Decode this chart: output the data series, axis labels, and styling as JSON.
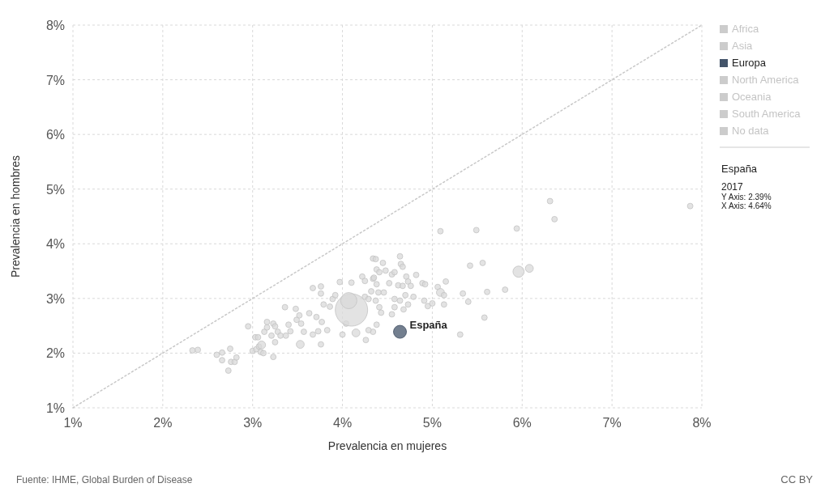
{
  "chart_data": {
    "type": "bubble",
    "xlabel": "Prevalencia en mujeres",
    "ylabel": "Prevalencia en hombres",
    "xlim": [
      1,
      8
    ],
    "ylim": [
      1,
      8
    ],
    "xticks": [
      {
        "value": 1,
        "label": "1%"
      },
      {
        "value": 2,
        "label": "2%"
      },
      {
        "value": 3,
        "label": "3%"
      },
      {
        "value": 4,
        "label": "4%"
      },
      {
        "value": 5,
        "label": "5%"
      },
      {
        "value": 6,
        "label": "6%"
      },
      {
        "value": 7,
        "label": "7%"
      },
      {
        "value": 8,
        "label": "8%"
      }
    ],
    "yticks": [
      {
        "value": 1,
        "label": "1%"
      },
      {
        "value": 2,
        "label": "2%"
      },
      {
        "value": 3,
        "label": "3%"
      },
      {
        "value": 4,
        "label": "4%"
      },
      {
        "value": 5,
        "label": "5%"
      },
      {
        "value": 6,
        "label": "6%"
      },
      {
        "value": 7,
        "label": "7%"
      },
      {
        "value": 8,
        "label": "8%"
      }
    ],
    "grid": true,
    "legend": "right",
    "series": [
      {
        "type": "line",
        "color": "#c8c8c8",
        "line_style": "dotted",
        "marker": "none",
        "x": [
          1,
          8
        ],
        "values": [
          1,
          8
        ]
      },
      {
        "color": "#d9d9d9",
        "x": [
          2.33,
          2.39,
          2.6,
          2.66,
          2.66,
          2.75,
          2.76,
          2.8,
          2.82,
          2.73,
          2.95,
          3.0,
          3.04,
          3.07,
          3.1,
          3.09,
          3.12,
          3.23,
          3.03,
          3.06,
          3.13,
          3.16,
          3.16,
          3.21,
          3.23,
          3.25,
          3.28,
          3.31,
          3.25,
          3.36,
          3.37,
          3.4,
          3.42,
          3.48,
          3.49,
          3.52,
          3.54,
          3.57,
          3.53,
          3.63,
          3.67,
          3.71,
          3.73,
          3.76,
          3.77,
          3.67,
          3.76,
          3.76,
          3.79,
          3.83,
          3.86,
          3.89,
          3.92,
          3.97,
          4.0,
          4.04,
          4.1,
          4.15,
          4.22,
          4.25,
          4.25,
          4.26,
          4.34,
          4.37,
          4.45,
          4.38,
          4.41,
          4.34,
          4.38,
          4.32,
          4.4,
          4.29,
          4.37,
          4.41,
          4.43,
          4.38,
          4.34,
          4.29,
          4.1,
          4.07,
          4.64,
          4.65,
          4.67,
          4.55,
          4.58,
          4.48,
          4.71,
          4.82,
          4.52,
          4.62,
          4.67,
          4.73,
          4.76,
          4.89,
          4.92,
          4.46,
          4.58,
          4.64,
          4.7,
          4.79,
          4.73,
          4.58,
          4.68,
          4.55,
          4.91,
          4.95,
          5.0,
          5.06,
          5.09,
          5.13,
          5.15,
          5.13,
          5.34,
          5.4,
          5.42,
          5.56,
          5.61,
          5.81,
          5.58,
          5.31,
          4.35,
          5.09,
          5.49,
          5.94,
          6.31,
          6.36,
          7.87,
          5.96,
          6.08
        ],
        "values": [
          2.05,
          2.06,
          1.97,
          2.01,
          1.87,
          2.08,
          1.84,
          1.84,
          1.92,
          1.68,
          2.49,
          2.04,
          2.07,
          2.12,
          2.15,
          2.02,
          2.0,
          1.93,
          2.29,
          2.29,
          2.39,
          2.57,
          2.47,
          2.32,
          2.54,
          2.49,
          2.39,
          2.32,
          2.2,
          2.84,
          2.32,
          2.52,
          2.4,
          2.81,
          2.61,
          2.69,
          2.54,
          2.39,
          2.16,
          2.73,
          2.34,
          2.66,
          2.4,
          2.16,
          2.57,
          3.19,
          3.22,
          3.09,
          2.89,
          2.42,
          2.85,
          2.99,
          3.06,
          3.3,
          2.34,
          2.54,
          3.29,
          2.37,
          3.4,
          3.32,
          3.03,
          2.24,
          3.73,
          3.72,
          3.65,
          3.53,
          3.48,
          3.36,
          3.26,
          3.13,
          3.11,
          2.99,
          2.96,
          2.84,
          2.74,
          2.52,
          2.39,
          2.42,
          2.79,
          2.96,
          3.77,
          3.63,
          3.58,
          3.44,
          3.48,
          3.51,
          3.4,
          3.43,
          3.28,
          3.24,
          3.23,
          3.31,
          3.23,
          3.28,
          3.26,
          3.11,
          2.99,
          2.96,
          3.06,
          3.03,
          2.89,
          2.84,
          2.8,
          2.71,
          2.96,
          2.86,
          2.91,
          3.21,
          3.11,
          3.06,
          3.31,
          2.89,
          3.09,
          2.94,
          3.6,
          3.65,
          3.12,
          3.16,
          2.65,
          2.34,
          3.38,
          4.23,
          4.25,
          4.28,
          4.78,
          4.45,
          4.69,
          3.49,
          3.55
        ],
        "sizes": [
          0.03,
          0.03,
          0.03,
          0.03,
          0.03,
          0.03,
          0.03,
          0.03,
          0.03,
          0.03,
          0.03,
          0.03,
          0.03,
          0.03,
          0.06,
          0.03,
          0.03,
          0.03,
          0.03,
          0.03,
          0.03,
          0.03,
          0.03,
          0.03,
          0.03,
          0.03,
          0.03,
          0.03,
          0.03,
          0.03,
          0.03,
          0.03,
          0.03,
          0.03,
          0.03,
          0.03,
          0.03,
          0.03,
          0.06,
          0.03,
          0.03,
          0.03,
          0.03,
          0.03,
          0.03,
          0.03,
          0.03,
          0.03,
          0.03,
          0.03,
          0.03,
          0.03,
          0.03,
          0.03,
          0.03,
          0.03,
          0.03,
          0.06,
          0.03,
          0.03,
          0.03,
          0.03,
          0.03,
          0.03,
          0.03,
          0.03,
          0.03,
          0.03,
          0.03,
          0.03,
          0.03,
          0.03,
          0.03,
          0.03,
          0.03,
          0.03,
          0.03,
          0.03,
          1,
          0.25,
          0.03,
          0.03,
          0.03,
          0.03,
          0.03,
          0.03,
          0.03,
          0.03,
          0.03,
          0.03,
          0.03,
          0.03,
          0.03,
          0.03,
          0.03,
          0.03,
          0.03,
          0.03,
          0.03,
          0.03,
          0.03,
          0.03,
          0.03,
          0.03,
          0.03,
          0.03,
          0.03,
          0.03,
          0.06,
          0.03,
          0.03,
          0.03,
          0.03,
          0.03,
          0.03,
          0.03,
          0.03,
          0.03,
          0.03,
          0.03,
          0.03,
          0.03,
          0.03,
          0.03,
          0.03,
          0.03,
          0.03,
          0.12,
          0.06
        ]
      },
      {
        "name": "Africa",
        "color": "#cccccc"
      },
      {
        "name": "Asia",
        "color": "#cccccc"
      },
      {
        "name": "Europa",
        "color": "#44546a",
        "x": [
          4.64
        ],
        "values": [
          2.39
        ],
        "sizes": [
          0.16
        ]
      },
      {
        "name": "North America",
        "color": "#cccccc"
      },
      {
        "name": "Oceania",
        "color": "#cccccc"
      },
      {
        "name": "South America",
        "color": "#cccccc"
      },
      {
        "name": "No data",
        "color": "#cccccc"
      }
    ],
    "annotations": [
      {
        "text": "España",
        "x": 4.64,
        "y": 2.39
      },
      "España",
      "2017",
      "Y Axis: 2.39%",
      "X Axis: 4.64%",
      "Fuente: IHME, Global Burden of Disease",
      "CC BY"
    ]
  }
}
